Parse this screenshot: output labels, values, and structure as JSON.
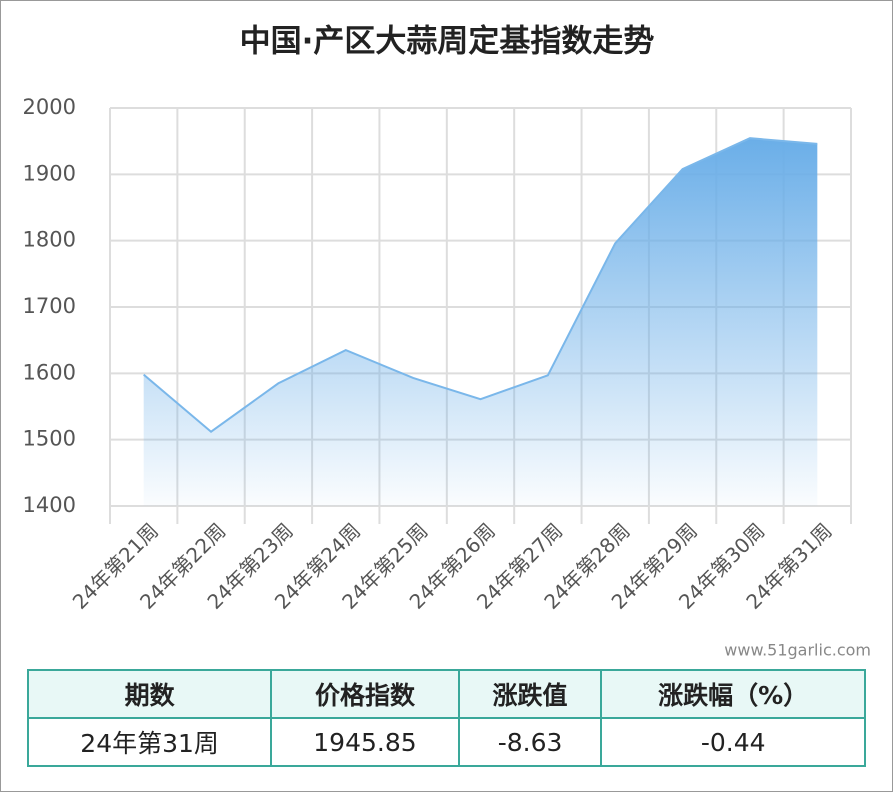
{
  "chart_data": {
    "type": "area",
    "title": "中国·产区大蒜周定基指数走势",
    "categories": [
      "24年第21周",
      "24年第22周",
      "24年第23周",
      "24年第24周",
      "24年第25周",
      "24年第26周",
      "24年第27周",
      "24年第28周",
      "24年第29周",
      "24年第30周",
      "24年第31周"
    ],
    "values": [
      1598,
      1512,
      1585,
      1635,
      1593,
      1561,
      1597,
      1796,
      1908,
      1954.48,
      1945.85
    ],
    "color": "#7ab7ea",
    "ylim": [
      1400,
      2000
    ],
    "yticks": [
      1400,
      1500,
      1600,
      1700,
      1800,
      1900,
      2000
    ],
    "grid": true,
    "watermark": "www.51garlic.com"
  },
  "table": {
    "header": [
      "期数",
      "价格指数",
      "涨跌值",
      "涨跌幅（%）"
    ],
    "rows": [
      [
        "24年第31周",
        1945.85,
        -8.63,
        -0.44
      ]
    ]
  }
}
